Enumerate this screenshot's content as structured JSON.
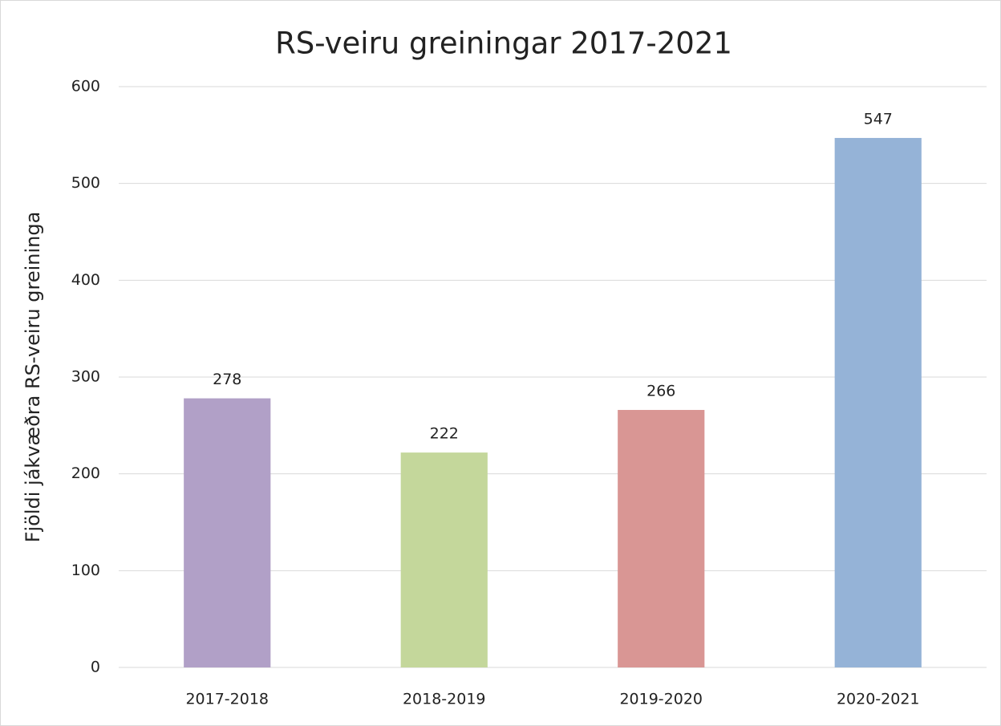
{
  "chart_data": {
    "type": "bar",
    "title": "RS-veiru greiningar 2017-2021",
    "y_label": "Fjöldi jákvæðra RS-veiru greininga",
    "categories": [
      "2017-2018",
      "2018-2019",
      "2019-2020",
      "2020-2021"
    ],
    "values": [
      278,
      222,
      266,
      547
    ],
    "colors": [
      "#b1a0c7",
      "#c4d79b",
      "#d99694",
      "#95b3d7"
    ],
    "ylim": [
      0,
      600
    ],
    "yticks": [
      0,
      100,
      200,
      300,
      400,
      500,
      600
    ],
    "grid": true
  }
}
